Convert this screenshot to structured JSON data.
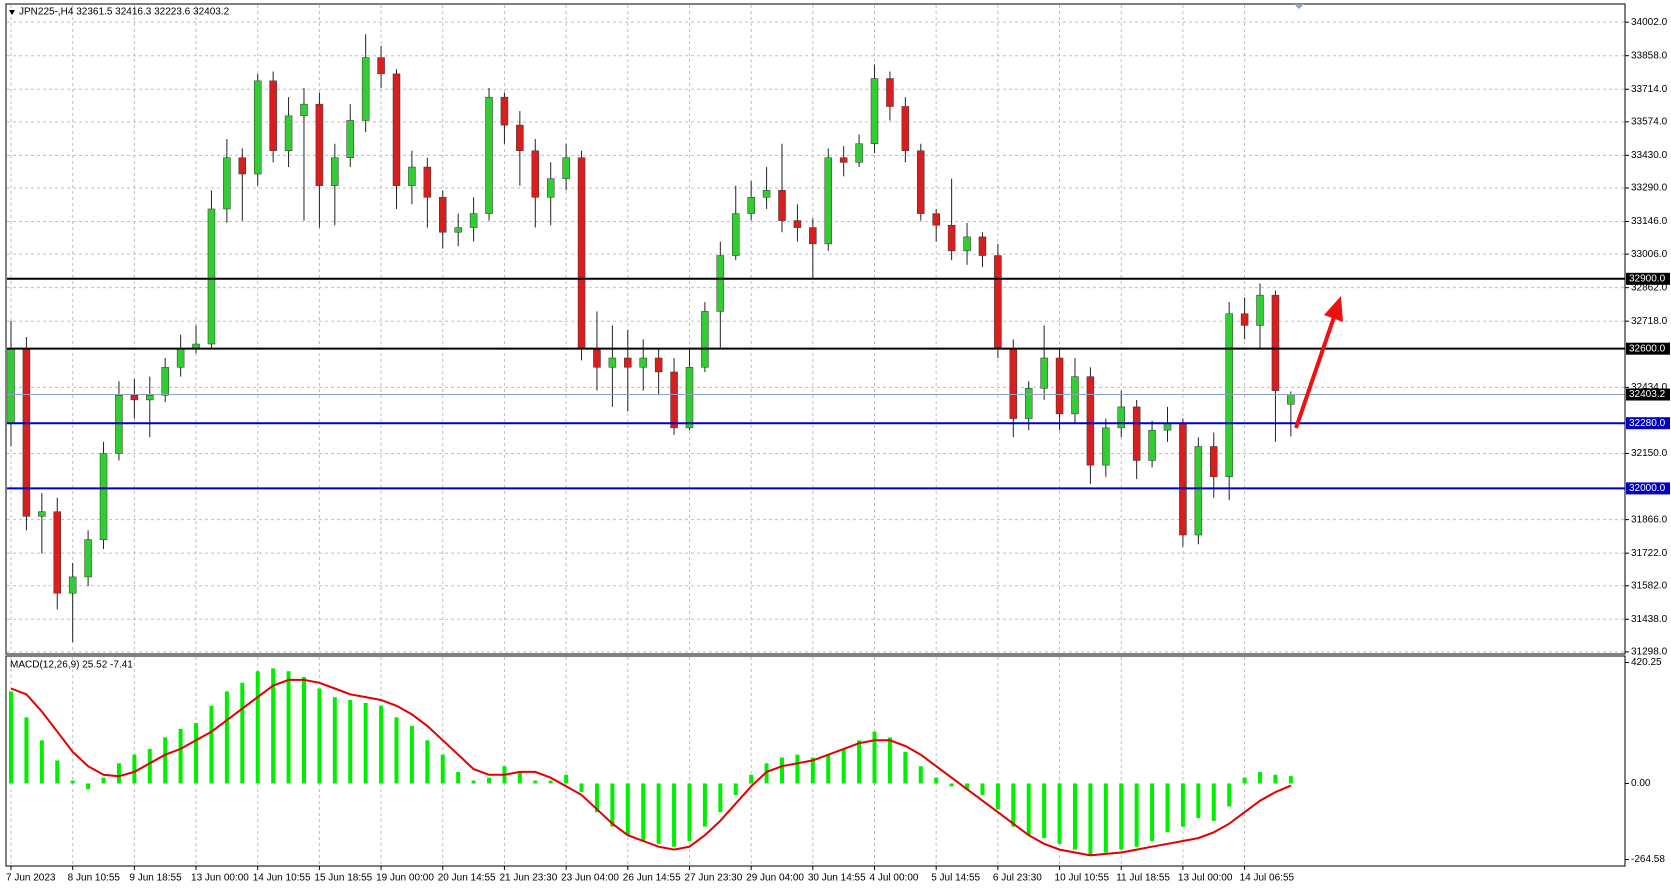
{
  "chart_data": [
    {
      "type": "candlestick",
      "title": "JPN225-,H4  32361.5 32416.3 32223.6 32403.2",
      "categories": [
        "7 Jun 2023",
        null,
        null,
        null,
        "8 Jun 10:55",
        null,
        null,
        null,
        "9 Jun 18:55",
        null,
        null,
        null,
        "13 Jun 00:00",
        null,
        null,
        null,
        "14 Jun 10:55",
        null,
        null,
        null,
        "15 Jun 18:55",
        null,
        null,
        null,
        "19 Jun 00:00",
        null,
        null,
        null,
        "20 Jun 14:55",
        null,
        null,
        null,
        "21 Jun 23:30",
        null,
        null,
        null,
        "23 Jun 04:00",
        null,
        null,
        null,
        "26 Jun 14:55",
        null,
        null,
        null,
        "27 Jun 23:30",
        null,
        null,
        null,
        "29 Jun 04:00",
        null,
        null,
        null,
        "30 Jun 14:55",
        null,
        null,
        null,
        "4 Jul 00:00",
        null,
        null,
        null,
        "5 Jul 14:55",
        null,
        null,
        null,
        "6 Jul 23:30",
        null,
        null,
        null,
        "10 Jul 10:55",
        null,
        null,
        null,
        "11 Jul 18:55",
        null,
        null,
        null,
        "13 Jul 00:00",
        null,
        null,
        null,
        "14 Jul 06:55",
        null,
        null,
        null
      ],
      "open": [
        32280,
        32600,
        31880,
        31900,
        31550,
        31620,
        31780,
        32150,
        32400,
        32380,
        32400,
        32520,
        32600,
        32620,
        33200,
        33420,
        33350,
        33750,
        33450,
        33600,
        33650,
        33300,
        33420,
        33580,
        33850,
        33780,
        33300,
        33380,
        33250,
        33100,
        33120,
        33180,
        33680,
        33560,
        33450,
        33250,
        33330,
        33420,
        32600,
        32520,
        32560,
        32520,
        32560,
        32500,
        32260,
        32520,
        32760,
        33000,
        33180,
        33250,
        33280,
        33150,
        33120,
        33050,
        33420,
        33400,
        33480,
        33760,
        33640,
        33450,
        33180,
        33130,
        33020,
        33080,
        33000,
        32600,
        32300,
        32430,
        32560,
        32320,
        32480,
        32100,
        32260,
        32350,
        32120,
        32250,
        32280,
        31800,
        32180,
        32050,
        32750,
        32700,
        32830,
        32361.5
      ],
      "high": [
        32720,
        32650,
        31980,
        31960,
        31680,
        31820,
        32200,
        32460,
        32470,
        32480,
        32560,
        32660,
        32700,
        33280,
        33500,
        33460,
        33780,
        33790,
        33680,
        33720,
        33700,
        33480,
        33650,
        33950,
        33900,
        33800,
        33450,
        33420,
        33280,
        33180,
        33250,
        33720,
        33700,
        33620,
        33500,
        33400,
        33480,
        33450,
        32760,
        32700,
        32680,
        32640,
        32600,
        32560,
        32600,
        32800,
        33060,
        33300,
        33320,
        33380,
        33480,
        33220,
        33160,
        33460,
        33470,
        33520,
        33820,
        33790,
        33680,
        33480,
        33200,
        33330,
        33140,
        33100,
        33050,
        32640,
        32460,
        32700,
        32600,
        32560,
        32520,
        32300,
        32420,
        32380,
        32290,
        32350,
        32300,
        32220,
        32240,
        32800,
        32820,
        32880,
        32850,
        32416.3
      ],
      "low": [
        32180,
        31820,
        31720,
        31480,
        31340,
        31580,
        31740,
        32120,
        32300,
        32220,
        32370,
        32480,
        32580,
        32600,
        33140,
        33150,
        33300,
        33400,
        33380,
        33150,
        33120,
        33130,
        33380,
        33530,
        33720,
        33200,
        33220,
        33120,
        33030,
        33040,
        33060,
        33150,
        33480,
        33300,
        33120,
        33130,
        33280,
        32550,
        32420,
        32350,
        32330,
        32420,
        32400,
        32230,
        32250,
        32500,
        32600,
        32980,
        33150,
        33200,
        33100,
        33060,
        32900,
        33020,
        33340,
        33380,
        33440,
        33580,
        33400,
        33150,
        33060,
        32980,
        32960,
        32950,
        32560,
        32220,
        32250,
        32380,
        32250,
        32280,
        32020,
        32050,
        32220,
        32040,
        32090,
        32200,
        31750,
        31760,
        31960,
        31950,
        32640,
        32600,
        32200,
        32223.6
      ],
      "close": [
        32600,
        31880,
        31900,
        31550,
        31620,
        31780,
        32150,
        32400,
        32380,
        32400,
        32520,
        32600,
        32620,
        33200,
        33420,
        33350,
        33750,
        33450,
        33600,
        33650,
        33300,
        33420,
        33580,
        33850,
        33780,
        33300,
        33380,
        33250,
        33100,
        33120,
        33180,
        33680,
        33560,
        33450,
        33250,
        33330,
        33420,
        32600,
        32520,
        32560,
        32520,
        32560,
        32500,
        32260,
        32520,
        32760,
        33000,
        33180,
        33250,
        33280,
        33150,
        33120,
        33050,
        33420,
        33400,
        33480,
        33760,
        33640,
        33450,
        33180,
        33130,
        33020,
        33080,
        33000,
        32600,
        32300,
        32430,
        32560,
        32320,
        32480,
        32100,
        32260,
        32350,
        32120,
        32250,
        32280,
        31800,
        32180,
        32050,
        32750,
        32700,
        32830,
        32420,
        32403.2
      ],
      "up_color": "#32cd32",
      "down_color": "#d81e1e",
      "ylim": [
        31289,
        34080
      ],
      "yticks": [
        {
          "value": 34002,
          "label": "34002.0"
        },
        {
          "value": 33858,
          "label": "33858.0"
        },
        {
          "value": 33714,
          "label": "33714.0"
        },
        {
          "value": 33574,
          "label": "33574.0"
        },
        {
          "value": 33430,
          "label": "33430.0"
        },
        {
          "value": 33290,
          "label": "33290.0"
        },
        {
          "value": 33146,
          "label": "33146.0"
        },
        {
          "value": 33006,
          "label": "33006.0"
        },
        {
          "value": 32862,
          "label": "32862.0"
        },
        {
          "value": 32718,
          "label": "32718.0"
        },
        {
          "value": 32434,
          "label": "32434.0"
        },
        {
          "value": 32150,
          "label": "32150.0"
        },
        {
          "value": 31866,
          "label": "31866.0"
        },
        {
          "value": 31722,
          "label": "31722.0"
        },
        {
          "value": 31582,
          "label": "31582.0"
        },
        {
          "value": 31438,
          "label": "31438.0"
        },
        {
          "value": 31298,
          "label": "31298.0"
        }
      ],
      "grid": true,
      "levels": [
        {
          "value": 32900,
          "label": "32900.0",
          "color": "#000000"
        },
        {
          "value": 32600,
          "label": "32600.0",
          "color": "#000000"
        },
        {
          "value": 32280,
          "label": "32280.0",
          "color": "#0000c0"
        },
        {
          "value": 32000,
          "label": "32000.0",
          "color": "#0000c0"
        }
      ],
      "last_price": {
        "value": 32403.2,
        "label": "32403.2",
        "color": "#8fa2bc"
      }
    },
    {
      "type": "macd",
      "title": "MACD(12,26,9) 25.52 -7.41",
      "ylim": [
        -287,
        443
      ],
      "yticks": [
        {
          "value": 420.25,
          "label": "420.25"
        },
        {
          "value": 0,
          "label": "0.00"
        },
        {
          "value": -264.58,
          "label": "-264.58"
        }
      ],
      "series": [
        {
          "color": "#00ee00",
          "values": [
            320,
            230,
            150,
            80,
            10,
            -20,
            20,
            70,
            100,
            120,
            160,
            190,
            210,
            270,
            320,
            350,
            390,
            400,
            390,
            370,
            330,
            300,
            290,
            280,
            270,
            230,
            200,
            150,
            100,
            40,
            10,
            20,
            60,
            40,
            10,
            10,
            30,
            -30,
            -100,
            -150,
            -180,
            -200,
            -210,
            -220,
            -200,
            -150,
            -100,
            -40,
            30,
            70,
            90,
            100,
            90,
            100,
            120,
            150,
            180,
            160,
            110,
            60,
            20,
            -10,
            -20,
            -40,
            -90,
            -150,
            -180,
            -190,
            -210,
            -230,
            -250,
            -240,
            -230,
            -220,
            -200,
            -170,
            -150,
            -120,
            -130,
            -80,
            20,
            40,
            30,
            25.52
          ]
        },
        {
          "color": "#e00000",
          "values": [
            330,
            310,
            250,
            180,
            110,
            60,
            30,
            25,
            40,
            70,
            100,
            120,
            150,
            180,
            220,
            260,
            300,
            340,
            360,
            360,
            350,
            330,
            310,
            300,
            290,
            270,
            240,
            200,
            150,
            100,
            50,
            30,
            30,
            40,
            40,
            20,
            -10,
            -40,
            -90,
            -140,
            -180,
            -200,
            -220,
            -230,
            -220,
            -180,
            -130,
            -70,
            -10,
            40,
            60,
            70,
            80,
            100,
            120,
            140,
            150,
            150,
            130,
            100,
            60,
            20,
            -20,
            -60,
            -100,
            -140,
            -180,
            -210,
            -230,
            -240,
            -250,
            -245,
            -240,
            -230,
            -220,
            -210,
            -200,
            -190,
            -170,
            -140,
            -100,
            -60,
            -30,
            -7.41
          ]
        }
      ]
    }
  ]
}
